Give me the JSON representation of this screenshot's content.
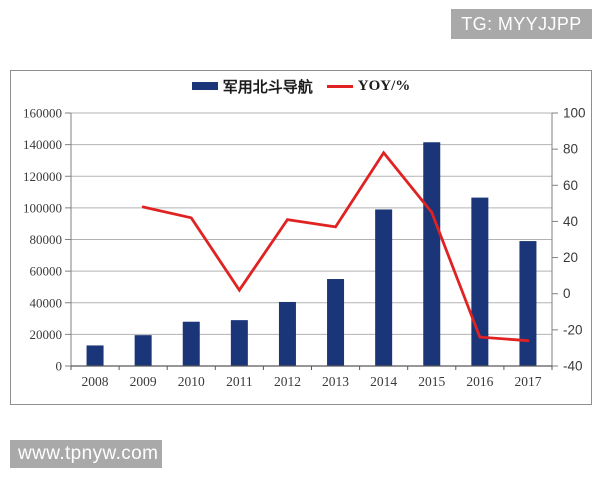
{
  "watermarks": {
    "top_right": "TG: MYYJJPP",
    "bottom_left": "www.tpnyw.com"
  },
  "legend": {
    "bar_label": "军用北斗导航",
    "line_label": "YOY/%"
  },
  "colors": {
    "bar": "#1a3578",
    "line": "#e02222",
    "grid": "#b3b3b3",
    "axis": "#808080",
    "x_axis": "#595959",
    "tick_text": "#3a3a3a",
    "watermark_bg": "#a9a9a9",
    "watermark_text": "#ffffff",
    "chart_border": "#8f8f8f"
  },
  "chart_data": {
    "type": "bar",
    "subtype": "bar-line-combo",
    "title": "",
    "categories": [
      "2008",
      "2009",
      "2010",
      "2011",
      "2012",
      "2013",
      "2014",
      "2015",
      "2016",
      "2017"
    ],
    "series": [
      {
        "name": "军用北斗导航",
        "type": "bar",
        "axis": "left",
        "values": [
          13000,
          19500,
          28000,
          29000,
          40500,
          55000,
          99000,
          141500,
          106500,
          79000
        ]
      },
      {
        "name": "YOY/%",
        "type": "line",
        "axis": "right",
        "start_index": 1,
        "values": [
          48,
          42,
          2,
          41,
          37,
          78,
          45,
          -24,
          -26
        ]
      }
    ],
    "left_axis": {
      "min": 0,
      "max": 160000,
      "step": 20000,
      "tick_labels": [
        "0",
        "20000",
        "40000",
        "60000",
        "80000",
        "100000",
        "120000",
        "140000",
        "160000"
      ]
    },
    "right_axis": {
      "min": -40,
      "max": 100,
      "step": 20,
      "tick_labels": [
        "-40",
        "-20",
        "0",
        "20",
        "40",
        "60",
        "80",
        "100"
      ]
    },
    "grid": true,
    "legend_position": "top-center"
  }
}
